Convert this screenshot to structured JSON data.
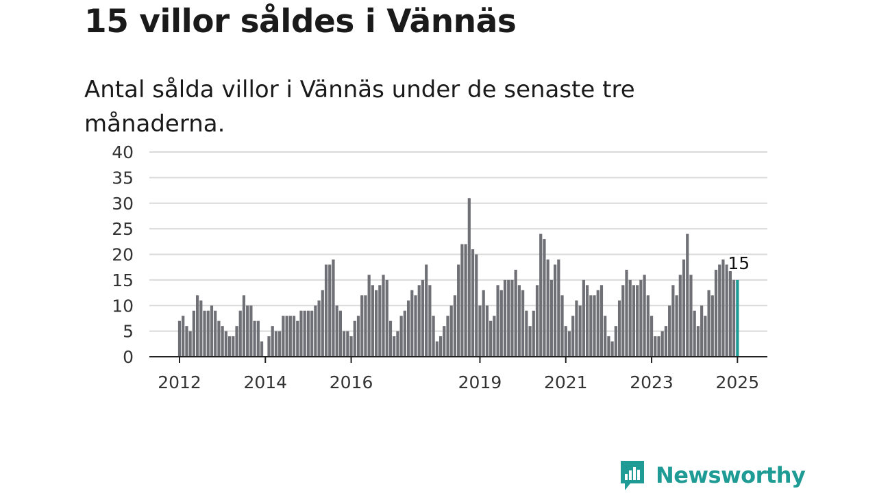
{
  "title": "15 villor såldes i Vännäs",
  "subtitle": "Antal sålda villor i Vännäs under de senaste tre månaderna.",
  "brand": {
    "name": "Newsworthy",
    "color": "#1f9b95",
    "icon": "newsworthy-logo-icon"
  },
  "colors": {
    "bar": "#6f6f76",
    "highlight": "#1f9b95",
    "grid": "#d9d9d9",
    "axis": "#222222"
  },
  "chart_data": {
    "type": "bar",
    "title": "15 villor såldes i Vännäs",
    "subtitle": "Antal sålda villor i Vännäs under de senaste tre månaderna.",
    "xlabel": "",
    "ylabel": "",
    "ylim": [
      0,
      40
    ],
    "yticks": [
      "0",
      "5",
      "10",
      "15",
      "20",
      "25",
      "30",
      "35",
      "40"
    ],
    "xticks": [
      "2012",
      "2014",
      "2016",
      "2019",
      "2021",
      "2023",
      "2025"
    ],
    "grid": true,
    "x_start": "2012-01",
    "x_end": "2025-01",
    "values": [
      7,
      8,
      6,
      5,
      9,
      12,
      11,
      9,
      9,
      10,
      9,
      7,
      6,
      5,
      4,
      4,
      6,
      9,
      12,
      10,
      10,
      7,
      7,
      3,
      0,
      4,
      6,
      5,
      5,
      8,
      8,
      8,
      8,
      7,
      9,
      9,
      9,
      9,
      10,
      11,
      13,
      18,
      18,
      19,
      10,
      9,
      5,
      5,
      4,
      7,
      8,
      12,
      12,
      16,
      14,
      13,
      14,
      16,
      15,
      7,
      4,
      5,
      8,
      9,
      11,
      13,
      12,
      14,
      15,
      18,
      14,
      8,
      3,
      4,
      6,
      8,
      10,
      12,
      18,
      22,
      22,
      31,
      21,
      20,
      10,
      13,
      10,
      7,
      8,
      14,
      13,
      15,
      15,
      15,
      17,
      14,
      13,
      9,
      6,
      9,
      14,
      24,
      23,
      19,
      15,
      18,
      19,
      12,
      6,
      5,
      8,
      11,
      10,
      15,
      14,
      12,
      12,
      13,
      14,
      8,
      4,
      3,
      6,
      11,
      14,
      17,
      15,
      14,
      14,
      15,
      16,
      12,
      8,
      4,
      4,
      5,
      6,
      10,
      14,
      12,
      16,
      19,
      24,
      16,
      9,
      6,
      10,
      8,
      13,
      12,
      17,
      18,
      19,
      18,
      17,
      15,
      15
    ],
    "last_value_label": "15"
  }
}
